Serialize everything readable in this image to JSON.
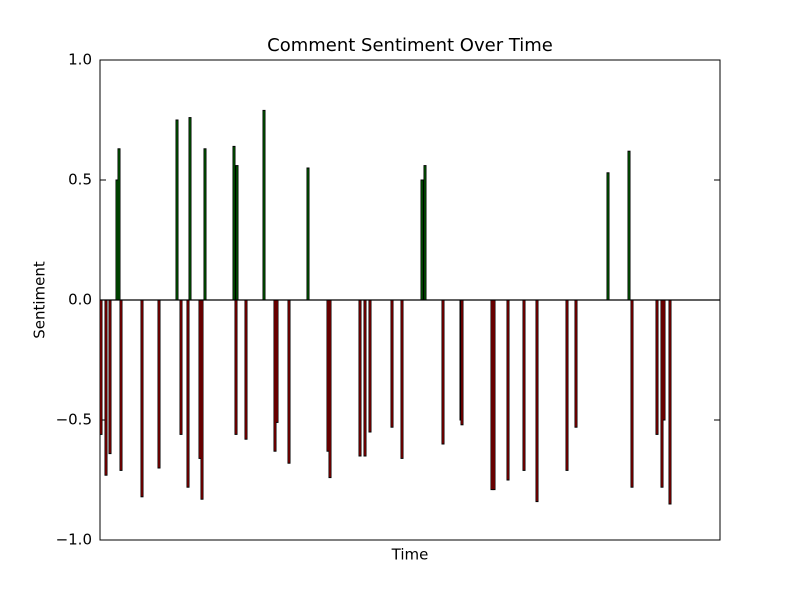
{
  "chart_data": {
    "type": "bar",
    "title": "Comment Sentiment Over Time",
    "xlabel": "Time",
    "ylabel": "Sentiment",
    "x": [
      1,
      6,
      10,
      17,
      19,
      21,
      42,
      59,
      77,
      81,
      88,
      90,
      100,
      102,
      105,
      134,
      136,
      137,
      146,
      164,
      175,
      177,
      189,
      208,
      228,
      230,
      260,
      265,
      270,
      292,
      302,
      322,
      325,
      343,
      361,
      362,
      392,
      394,
      408,
      424,
      437,
      467,
      476,
      508,
      529,
      532,
      557,
      562,
      564,
      570
    ],
    "values": [
      -0.56,
      -0.73,
      -0.64,
      0.5,
      0.63,
      -0.71,
      -0.82,
      -0.7,
      0.75,
      -0.56,
      -0.78,
      0.76,
      -0.66,
      -0.83,
      0.63,
      0.64,
      -0.56,
      0.56,
      -0.58,
      0.79,
      -0.63,
      -0.51,
      -0.68,
      0.55,
      -0.63,
      -0.74,
      -0.65,
      -0.65,
      -0.55,
      -0.53,
      -0.66,
      0.5,
      0.56,
      -0.6,
      -0.5,
      -0.52,
      -0.79,
      -0.79,
      -0.75,
      -0.71,
      -0.84,
      -0.71,
      -0.53,
      0.53,
      0.62,
      -0.78,
      -0.56,
      -0.78,
      -0.5,
      -0.85
    ],
    "positive_color": "#008000",
    "negative_color": "#cc0000",
    "edge_color": "#000000",
    "xlim": [
      0,
      620
    ],
    "ylim": [
      -1.0,
      1.0
    ],
    "yticks": [
      {
        "value": -1.0,
        "label": "−1.0"
      },
      {
        "value": -0.5,
        "label": "−0.5"
      },
      {
        "value": 0.0,
        "label": "0.0"
      },
      {
        "value": 0.5,
        "label": "0.5"
      },
      {
        "value": 1.0,
        "label": "1.0"
      }
    ],
    "hline": 0,
    "grid": false
  }
}
